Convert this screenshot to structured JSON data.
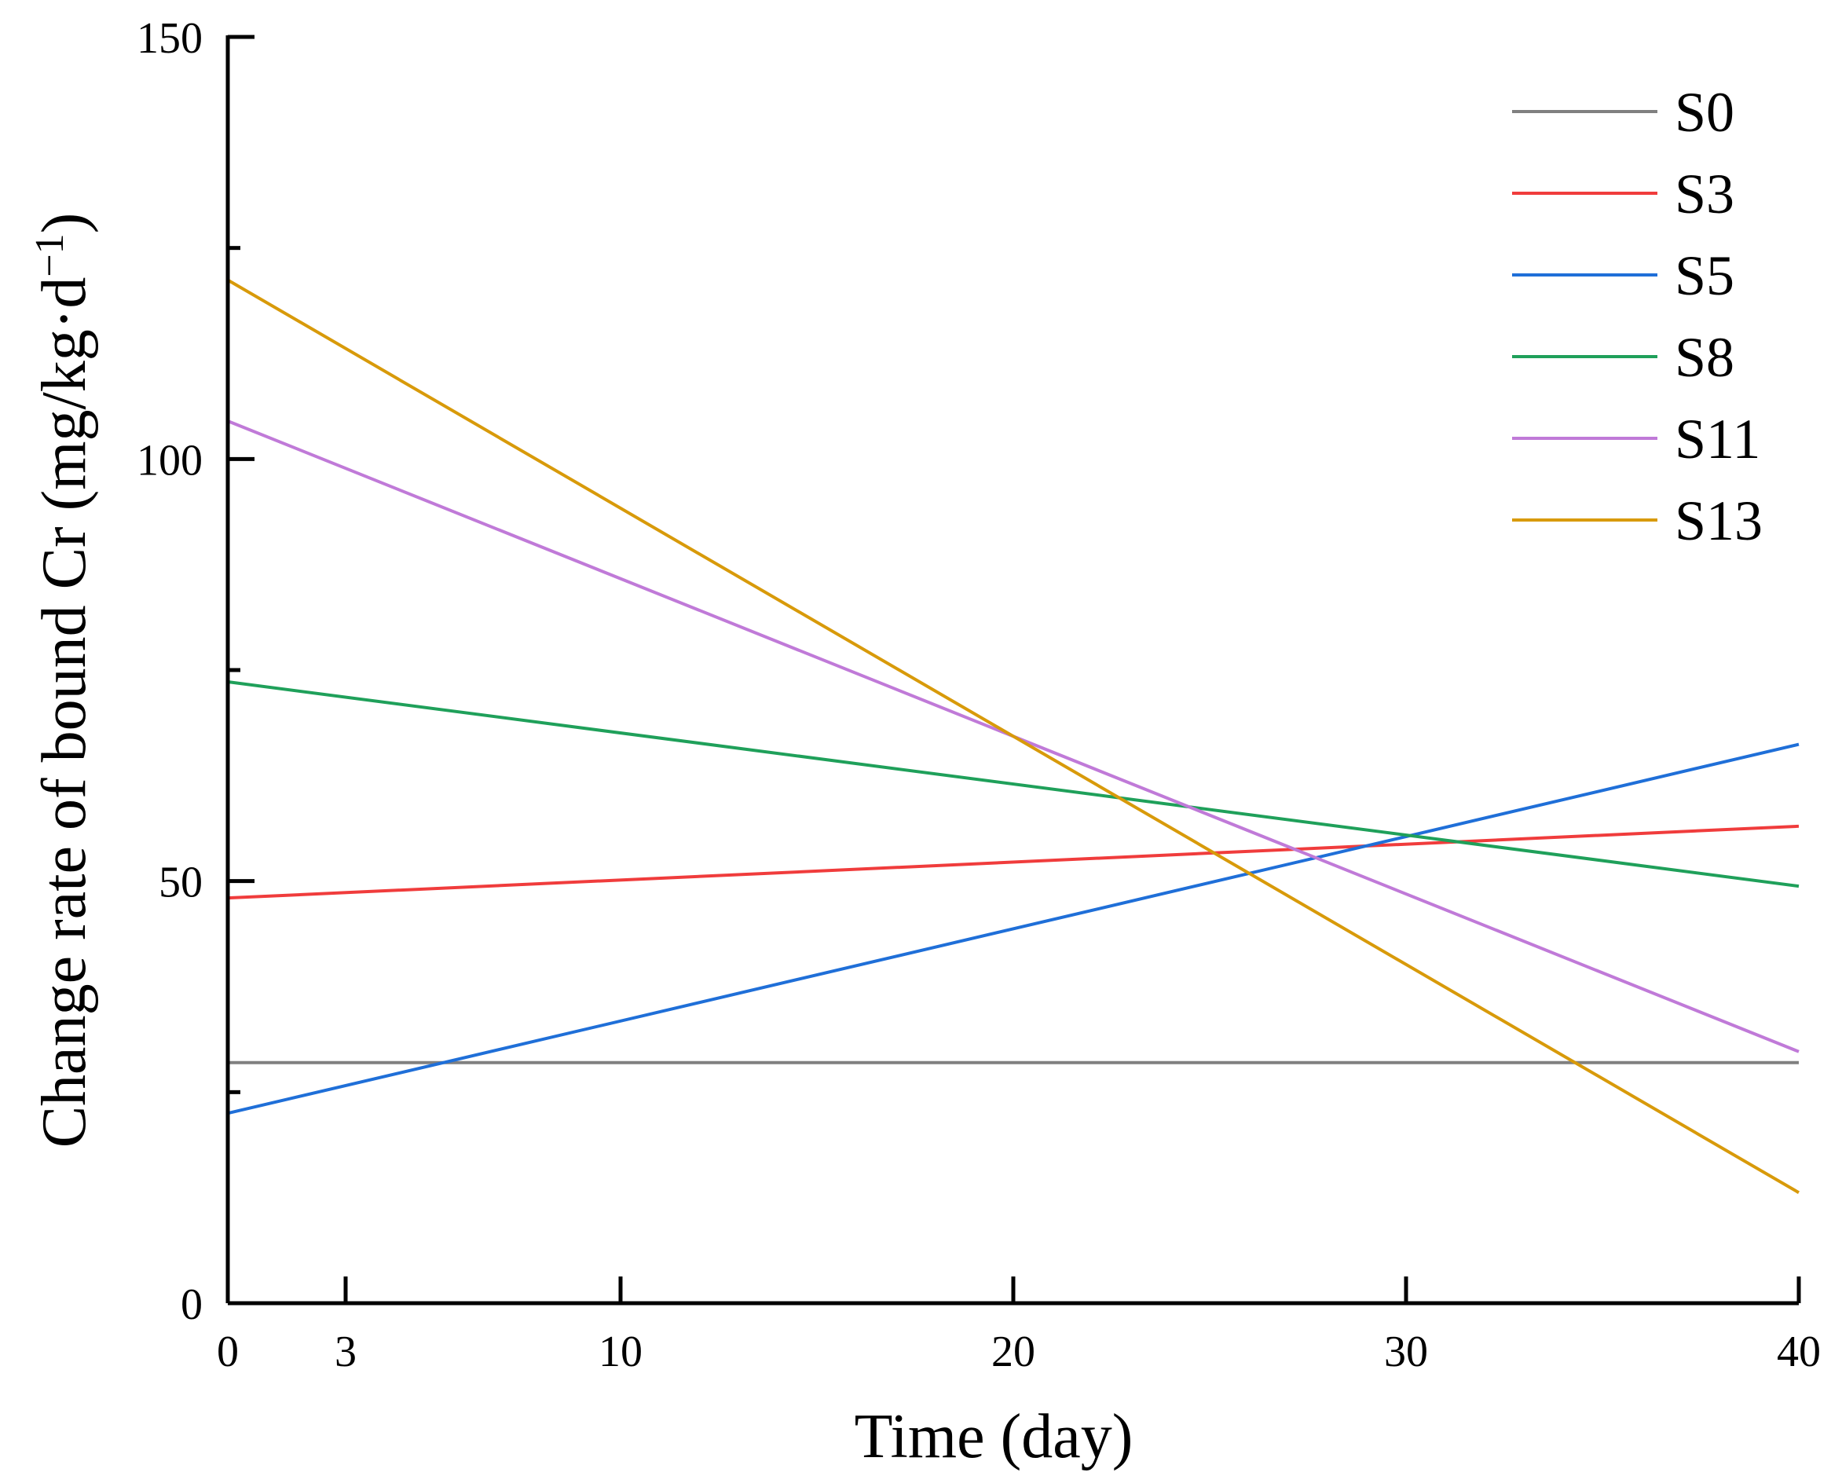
{
  "chart_data": {
    "type": "line",
    "title": "",
    "xlabel": "Time (day)",
    "ylabel": "Change rate of bound Cr (mg/kg·d",
    "ylabel_sup": "−1",
    "ylabel_close": ")",
    "xlim": [
      0,
      40
    ],
    "ylim": [
      0,
      150
    ],
    "xticks": [
      0,
      3,
      10,
      20,
      30,
      40
    ],
    "yticks": [
      0,
      50,
      100,
      150
    ],
    "yminor_ticks": [
      25,
      75,
      125
    ],
    "grid": false,
    "legend_position": "top-right",
    "series": [
      {
        "name": "S0",
        "color": "#808080",
        "x": [
          0,
          40
        ],
        "y": [
          28.5,
          28.5
        ]
      },
      {
        "name": "S3",
        "color": "#f03c3c",
        "x": [
          0,
          40
        ],
        "y": [
          48,
          56.5
        ]
      },
      {
        "name": "S5",
        "color": "#1f6fd8",
        "x": [
          0,
          40
        ],
        "y": [
          22.5,
          66.2
        ]
      },
      {
        "name": "S8",
        "color": "#1fa05a",
        "x": [
          0,
          40
        ],
        "y": [
          73.6,
          49.4
        ]
      },
      {
        "name": "S11",
        "color": "#c07ad8",
        "x": [
          0,
          40
        ],
        "y": [
          104.5,
          29.8
        ]
      },
      {
        "name": "S13",
        "color": "#d89a0a",
        "x": [
          0,
          40
        ],
        "y": [
          121.2,
          13.1
        ]
      }
    ]
  }
}
